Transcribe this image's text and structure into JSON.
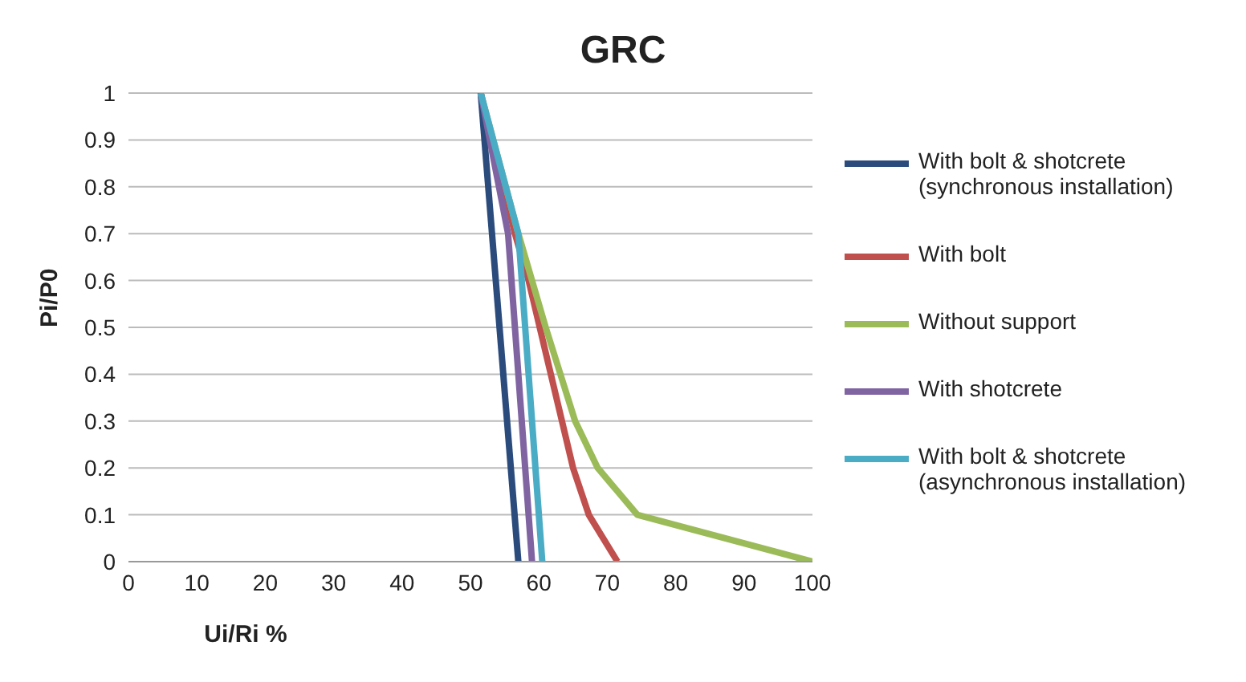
{
  "chart_data": {
    "type": "line",
    "title": "GRC",
    "xlabel": "Ui/Ri %",
    "ylabel": "Pi/P0",
    "xlim": [
      0,
      100
    ],
    "xticks": [
      0,
      10,
      20,
      30,
      40,
      50,
      60,
      70,
      80,
      90,
      100
    ],
    "ylim": [
      0,
      1
    ],
    "yticks": [
      0,
      0.1,
      0.2,
      0.3,
      0.4,
      0.5,
      0.6,
      0.7,
      0.8,
      0.9,
      1
    ],
    "grid": "y",
    "legend": "right",
    "marker": "none",
    "line_style": "solid",
    "series": [
      {
        "name": "With bolt & shotcrete (synchronous installation)",
        "color": "#2a4b7c",
        "x": [
          51.5,
          57
        ],
        "values": [
          1,
          0
        ]
      },
      {
        "name": "With bolt",
        "color": "#c0504d",
        "x": [
          51.5,
          56.5,
          58.5,
          65,
          67.3,
          71.5
        ],
        "values": [
          1,
          0.7,
          0.6,
          0.2,
          0.1,
          0
        ]
      },
      {
        "name": "Without support",
        "color": "#9bbb59",
        "x": [
          51.5,
          57,
          61,
          65.3,
          68.6,
          74.4,
          100
        ],
        "values": [
          1,
          0.7,
          0.5,
          0.3,
          0.2,
          0.1,
          0
        ]
      },
      {
        "name": "With shotcrete",
        "color": "#8064a2",
        "x": [
          51.5,
          55.5,
          59
        ],
        "values": [
          1,
          0.7,
          0
        ]
      },
      {
        "name": "With bolt & shotcrete (asynchronous installation)",
        "color": "#4bacc6",
        "x": [
          51.5,
          57,
          60.5
        ],
        "values": [
          1,
          0.7,
          0
        ]
      }
    ]
  }
}
